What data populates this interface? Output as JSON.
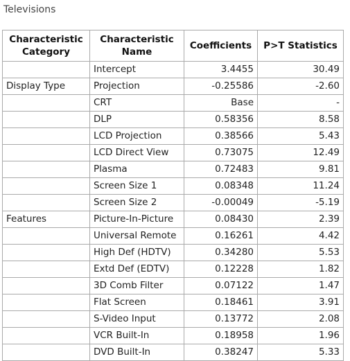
{
  "caption": "Televisions",
  "table": {
    "headers": {
      "category": "Characteristic Category",
      "name": "Characteristic Name",
      "coefficients": "Coefficients",
      "statistics": "P>T Statistics"
    },
    "rows": [
      {
        "category": "",
        "name": "Intercept",
        "coefficient": "3.4455",
        "statistic": "30.49"
      },
      {
        "category": "Display Type",
        "name": "Projection",
        "coefficient": "-0.25586",
        "statistic": "-2.60"
      },
      {
        "category": "",
        "name": "CRT",
        "coefficient": "Base",
        "statistic": "-"
      },
      {
        "category": "",
        "name": "DLP",
        "coefficient": "0.58356",
        "statistic": "8.58"
      },
      {
        "category": "",
        "name": "LCD Projection",
        "coefficient": "0.38566",
        "statistic": "5.43"
      },
      {
        "category": "",
        "name": "LCD Direct View",
        "coefficient": "0.73075",
        "statistic": "12.49"
      },
      {
        "category": "",
        "name": "Plasma",
        "coefficient": "0.72483",
        "statistic": "9.81"
      },
      {
        "category": "",
        "name": "Screen Size 1",
        "coefficient": "0.08348",
        "statistic": "11.24"
      },
      {
        "category": "",
        "name": "Screen Size 2",
        "coefficient": "-0.00049",
        "statistic": "-5.19"
      },
      {
        "category": "Features",
        "name": "Picture-In-Picture",
        "coefficient": "0.08430",
        "statistic": "2.39"
      },
      {
        "category": "",
        "name": "Universal Remote",
        "coefficient": "0.16261",
        "statistic": "4.42"
      },
      {
        "category": "",
        "name": "High Def (HDTV)",
        "coefficient": "0.34280",
        "statistic": "5.53"
      },
      {
        "category": "",
        "name": "Extd Def (EDTV)",
        "coefficient": "0.12228",
        "statistic": "1.82"
      },
      {
        "category": "",
        "name": "3D Comb Filter",
        "coefficient": "0.07122",
        "statistic": "1.47"
      },
      {
        "category": "",
        "name": "Flat Screen",
        "coefficient": "0.18461",
        "statistic": "3.91"
      },
      {
        "category": "",
        "name": "S-Video Input",
        "coefficient": "0.13772",
        "statistic": "2.08"
      },
      {
        "category": "",
        "name": "VCR Built-In",
        "coefficient": "0.18958",
        "statistic": "1.96"
      },
      {
        "category": "",
        "name": "DVD Built-In",
        "coefficient": "0.38247",
        "statistic": "5.33"
      }
    ]
  }
}
